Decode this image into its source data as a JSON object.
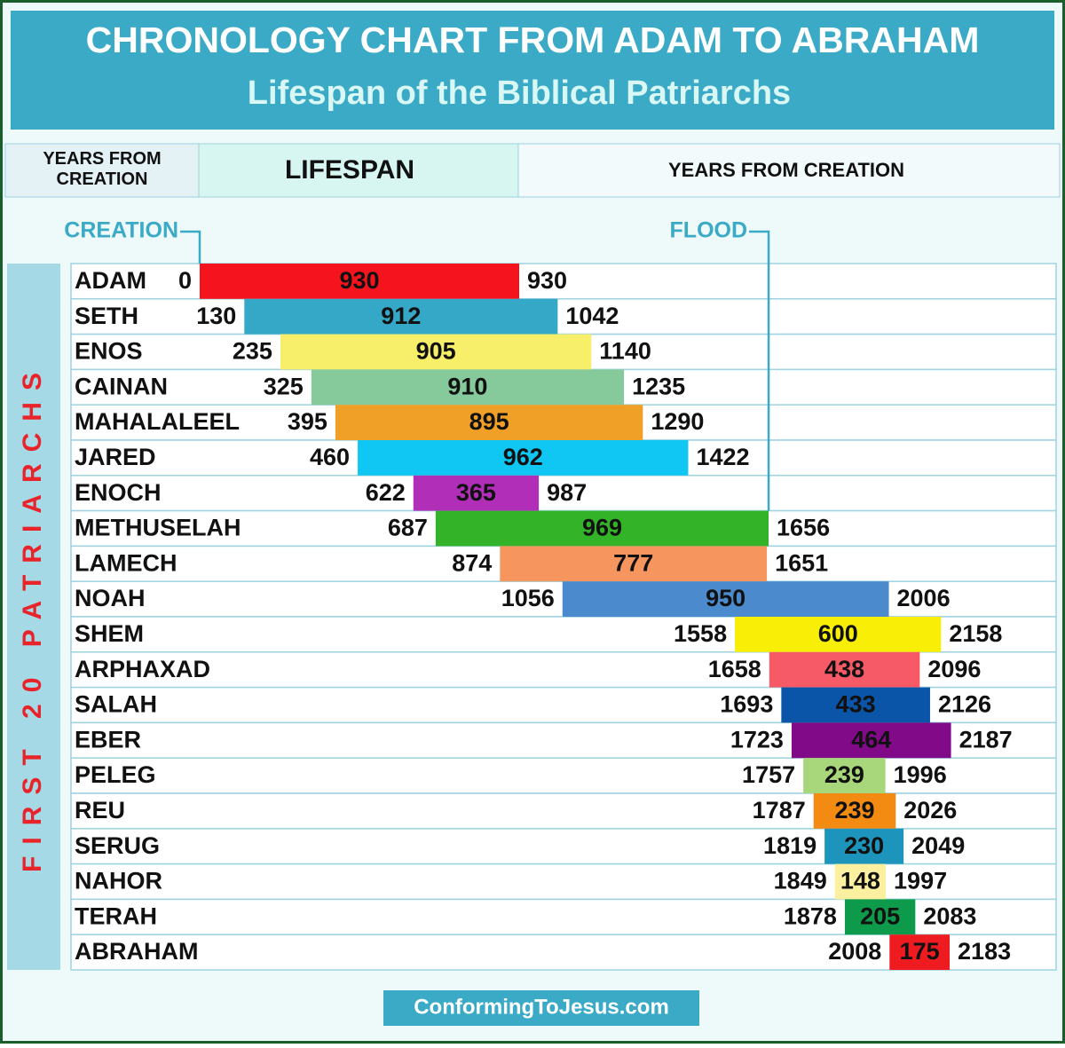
{
  "chart_data": {
    "type": "gantt",
    "title": "CHRONOLOGY CHART FROM ADAM TO ABRAHAM",
    "subtitle": "Lifespan of the Biblical Patriarchs",
    "header_left": "YEARS FROM CREATION",
    "header_middle": "LIFESPAN",
    "header_right": "YEARS FROM CREATION",
    "side_label": "FIRST 20 PATRIARCHS",
    "footer": "ConformingToJesus.com",
    "markers": [
      {
        "label": "CREATION",
        "value": 0
      },
      {
        "label": "FLOOD",
        "value": 1656
      }
    ],
    "categories": [
      "ADAM",
      "SETH",
      "ENOS",
      "CAINAN",
      "MAHALALEEL",
      "JARED",
      "ENOCH",
      "METHUSELAH",
      "LAMECH",
      "NOAH",
      "SHEM",
      "ARPHAXAD",
      "SALAH",
      "EBER",
      "PELEG",
      "REU",
      "SERUG",
      "NAHOR",
      "TERAH",
      "ABRAHAM"
    ],
    "start": [
      0,
      130,
      235,
      325,
      395,
      460,
      622,
      687,
      874,
      1056,
      1558,
      1658,
      1693,
      1723,
      1757,
      1787,
      1819,
      1849,
      1878,
      2008
    ],
    "lifespan": [
      930,
      912,
      905,
      910,
      895,
      962,
      365,
      969,
      777,
      950,
      600,
      438,
      433,
      464,
      239,
      239,
      230,
      148,
      205,
      175
    ],
    "end": [
      930,
      1042,
      1140,
      1235,
      1290,
      1422,
      987,
      1656,
      1651,
      2006,
      2158,
      2096,
      2126,
      2187,
      1996,
      2026,
      2049,
      1997,
      2083,
      2183
    ],
    "colors": [
      "#f5141e",
      "#35a8c8",
      "#f7ee6a",
      "#86c99a",
      "#f0a026",
      "#10c6f2",
      "#b12eb8",
      "#32b328",
      "#f7955e",
      "#4a8acd",
      "#f8ee06",
      "#f55a66",
      "#0a55a8",
      "#800a88",
      "#a8d67a",
      "#f38a12",
      "#1d94bc",
      "#fbf0a0",
      "#0d9a4a",
      "#ee1c20"
    ]
  }
}
